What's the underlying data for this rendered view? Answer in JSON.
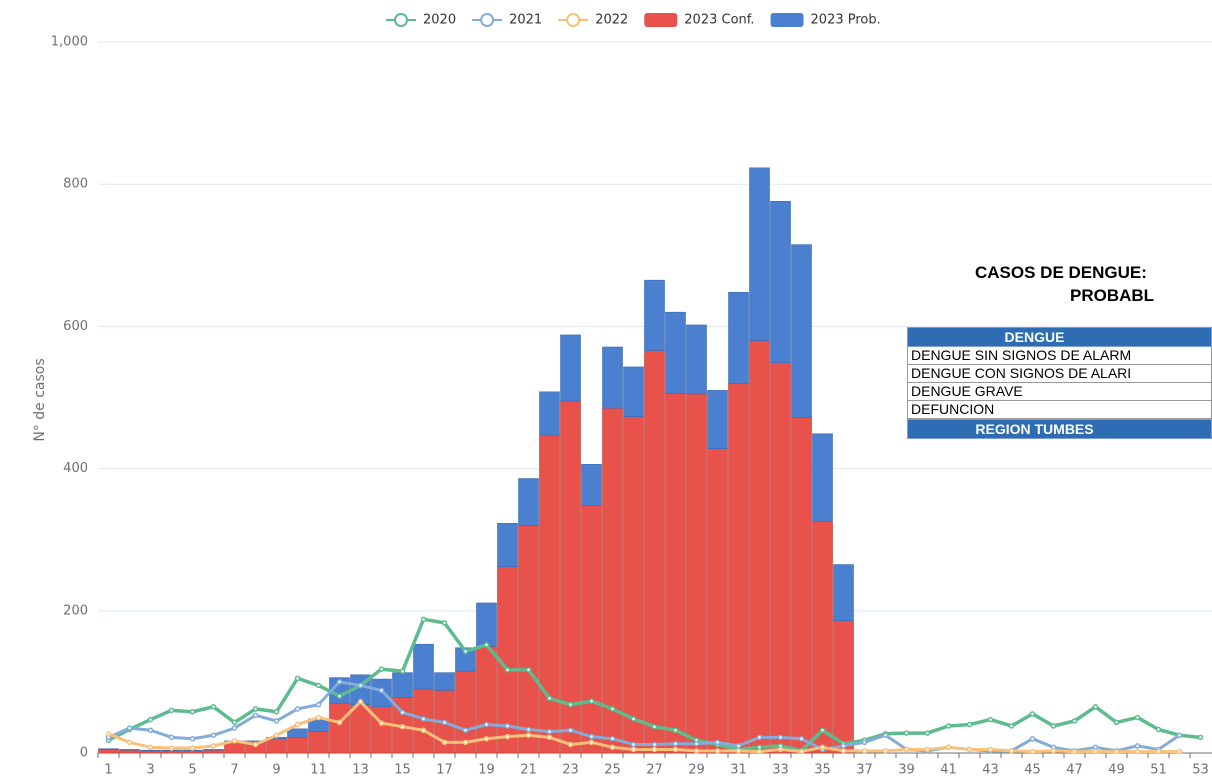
{
  "chart_data": {
    "type": "bar",
    "y_label": "N° de casos",
    "categories": [
      1,
      null,
      3,
      null,
      5,
      null,
      7,
      null,
      9,
      null,
      11,
      null,
      13,
      null,
      15,
      null,
      17,
      null,
      19,
      null,
      21,
      null,
      23,
      null,
      25,
      null,
      27,
      null,
      29,
      null,
      31,
      null,
      33,
      null,
      35,
      null,
      37,
      null,
      39,
      null,
      41,
      null,
      43,
      null,
      45,
      null,
      47,
      null,
      49,
      null,
      51,
      null,
      53
    ],
    "ylim": [
      0,
      1000
    ],
    "yticks": [
      0,
      200,
      400,
      600,
      800,
      {
        "value": 1000,
        "label": "1,000"
      }
    ],
    "grid": true,
    "series": [
      {
        "name": "2023 Conf.",
        "type": "bar",
        "stack": "2023",
        "color": "#e8524a",
        "values": [
          5,
          4,
          3,
          3,
          3,
          4,
          15,
          15,
          20,
          22,
          30,
          70,
          68,
          65,
          78,
          90,
          88,
          115,
          150,
          262,
          320,
          447,
          495,
          348,
          485,
          473,
          566,
          506,
          505,
          428,
          520,
          580,
          549,
          472,
          326,
          186,
          null,
          null,
          null,
          null,
          null,
          null,
          null,
          null,
          null,
          null,
          null,
          null,
          null,
          null,
          null,
          null,
          null
        ]
      },
      {
        "name": "2023 Prob.",
        "type": "bar",
        "stack": "2023",
        "color": "#4b7fcf",
        "values": [
          1,
          1,
          1,
          1,
          1,
          1,
          2,
          2,
          2,
          12,
          18,
          36,
          42,
          39,
          35,
          63,
          25,
          33,
          61,
          61,
          66,
          61,
          93,
          58,
          86,
          70,
          99,
          114,
          97,
          82,
          128,
          243,
          227,
          243,
          123,
          79,
          null,
          null,
          null,
          null,
          null,
          null,
          null,
          null,
          null,
          null,
          null,
          null,
          null,
          null,
          null,
          null,
          null
        ]
      },
      {
        "name": "2020",
        "type": "line",
        "color": "#5cbc8e",
        "values": [
          18,
          33,
          47,
          60,
          58,
          65,
          43,
          62,
          58,
          105,
          95,
          80,
          95,
          118,
          115,
          188,
          183,
          143,
          152,
          117,
          117,
          77,
          68,
          73,
          62,
          48,
          37,
          32,
          18,
          12,
          5,
          8,
          10,
          3,
          32,
          13,
          18,
          27,
          28,
          28,
          38,
          40,
          47,
          38,
          55,
          38,
          45,
          65,
          43,
          50,
          33,
          25,
          22
        ]
      },
      {
        "name": "2021",
        "type": "line",
        "color": "#84acd8",
        "values": [
          22,
          35,
          32,
          22,
          20,
          25,
          35,
          53,
          45,
          62,
          68,
          100,
          95,
          88,
          57,
          48,
          43,
          32,
          40,
          38,
          33,
          30,
          32,
          23,
          20,
          12,
          12,
          13,
          13,
          15,
          10,
          22,
          22,
          20,
          5,
          10,
          15,
          25,
          5,
          3,
          8,
          5,
          3,
          3,
          20,
          8,
          3,
          8,
          3,
          10,
          5,
          25,
          null
        ]
      },
      {
        "name": "2022",
        "type": "line",
        "color": "#f9c07a",
        "values": [
          27,
          15,
          8,
          7,
          7,
          10,
          17,
          12,
          25,
          40,
          50,
          43,
          72,
          42,
          37,
          32,
          15,
          15,
          20,
          23,
          25,
          22,
          12,
          15,
          8,
          5,
          5,
          5,
          3,
          3,
          3,
          2,
          5,
          2,
          8,
          3,
          3,
          3,
          5,
          5,
          8,
          5,
          5,
          3,
          2,
          3,
          2,
          2,
          2,
          2,
          2,
          2,
          null
        ]
      }
    ],
    "legend_order": [
      2,
      3,
      4,
      0,
      1
    ]
  },
  "table": {
    "title": [
      "CASOS DE DENGUE:",
      "PROBABL"
    ],
    "header": "DENGUE",
    "rows": [
      "DENGUE SIN SIGNOS DE ALARM",
      "DENGUE CON SIGNOS DE ALARI",
      "DENGUE GRAVE",
      "DEFUNCION"
    ],
    "footer": "REGION TUMBES"
  }
}
